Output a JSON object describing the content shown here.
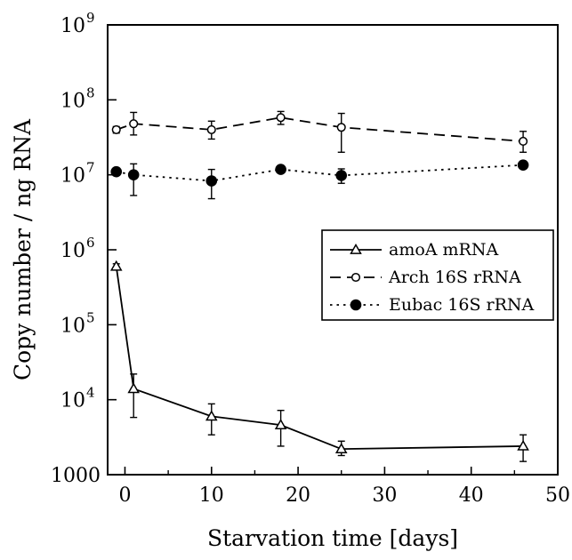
{
  "chart_data": {
    "type": "line",
    "title": "",
    "xlabel": "Starvation time [days]",
    "ylabel": "Copy number /  ng RNA",
    "x_scale": "linear",
    "y_scale": "log",
    "xlim": [
      -2,
      50
    ],
    "ylim": [
      1000,
      1000000000
    ],
    "x_ticks": [
      {
        "value": 0,
        "label": "0"
      },
      {
        "value": 10,
        "label": "10"
      },
      {
        "value": 20,
        "label": "20"
      },
      {
        "value": 30,
        "label": "30"
      },
      {
        "value": 40,
        "label": "40"
      },
      {
        "value": 50,
        "label": "50"
      }
    ],
    "y_ticks": [
      {
        "value": 1000,
        "label": "1000",
        "base": "",
        "exp": ""
      },
      {
        "value": 10000,
        "label": "",
        "base": "10",
        "exp": "4"
      },
      {
        "value": 100000,
        "label": "",
        "base": "10",
        "exp": "5"
      },
      {
        "value": 1000000,
        "label": "",
        "base": "10",
        "exp": "6"
      },
      {
        "value": 10000000,
        "label": "",
        "base": "10",
        "exp": "7"
      },
      {
        "value": 100000000,
        "label": "",
        "base": "10",
        "exp": "8"
      },
      {
        "value": 1000000000,
        "label": "",
        "base": "10",
        "exp": "9"
      }
    ],
    "legend_position": "right-middle",
    "series": [
      {
        "name": "amoA mRNA",
        "marker": "triangle-open",
        "line": "solid",
        "x": [
          -1,
          1,
          10,
          18,
          25,
          46
        ],
        "y": [
          600000,
          14000,
          6000,
          4600,
          2200,
          2400
        ],
        "err_low": [
          540000,
          5800,
          3400,
          2400,
          1800,
          1500
        ],
        "err_high": [
          650000,
          22000,
          8800,
          7200,
          2800,
          3400
        ]
      },
      {
        "name": "Arch 16S rRNA",
        "marker": "circle-open",
        "line": "dashed",
        "x": [
          -1,
          1,
          10,
          18,
          25,
          46
        ],
        "y": [
          40000000,
          48000000,
          40000000,
          58000000,
          43000000,
          28000000
        ],
        "err_low": [
          36000000,
          34000000,
          30000000,
          47000000,
          20000000,
          20000000
        ],
        "err_high": [
          44000000,
          68000000,
          52000000,
          70000000,
          66000000,
          38000000
        ]
      },
      {
        "name": "Eubac 16S rRNA",
        "marker": "circle-filled",
        "line": "dotted",
        "x": [
          -1,
          1,
          10,
          18,
          25,
          46
        ],
        "y": [
          11000000,
          10000000,
          8300000,
          11800000,
          9800000,
          13500000
        ],
        "err_low": [
          10000000,
          5300000,
          4800000,
          10800000,
          7700000,
          12500000
        ],
        "err_high": [
          12000000,
          14000000,
          11800000,
          12800000,
          12000000,
          14500000
        ]
      }
    ]
  }
}
